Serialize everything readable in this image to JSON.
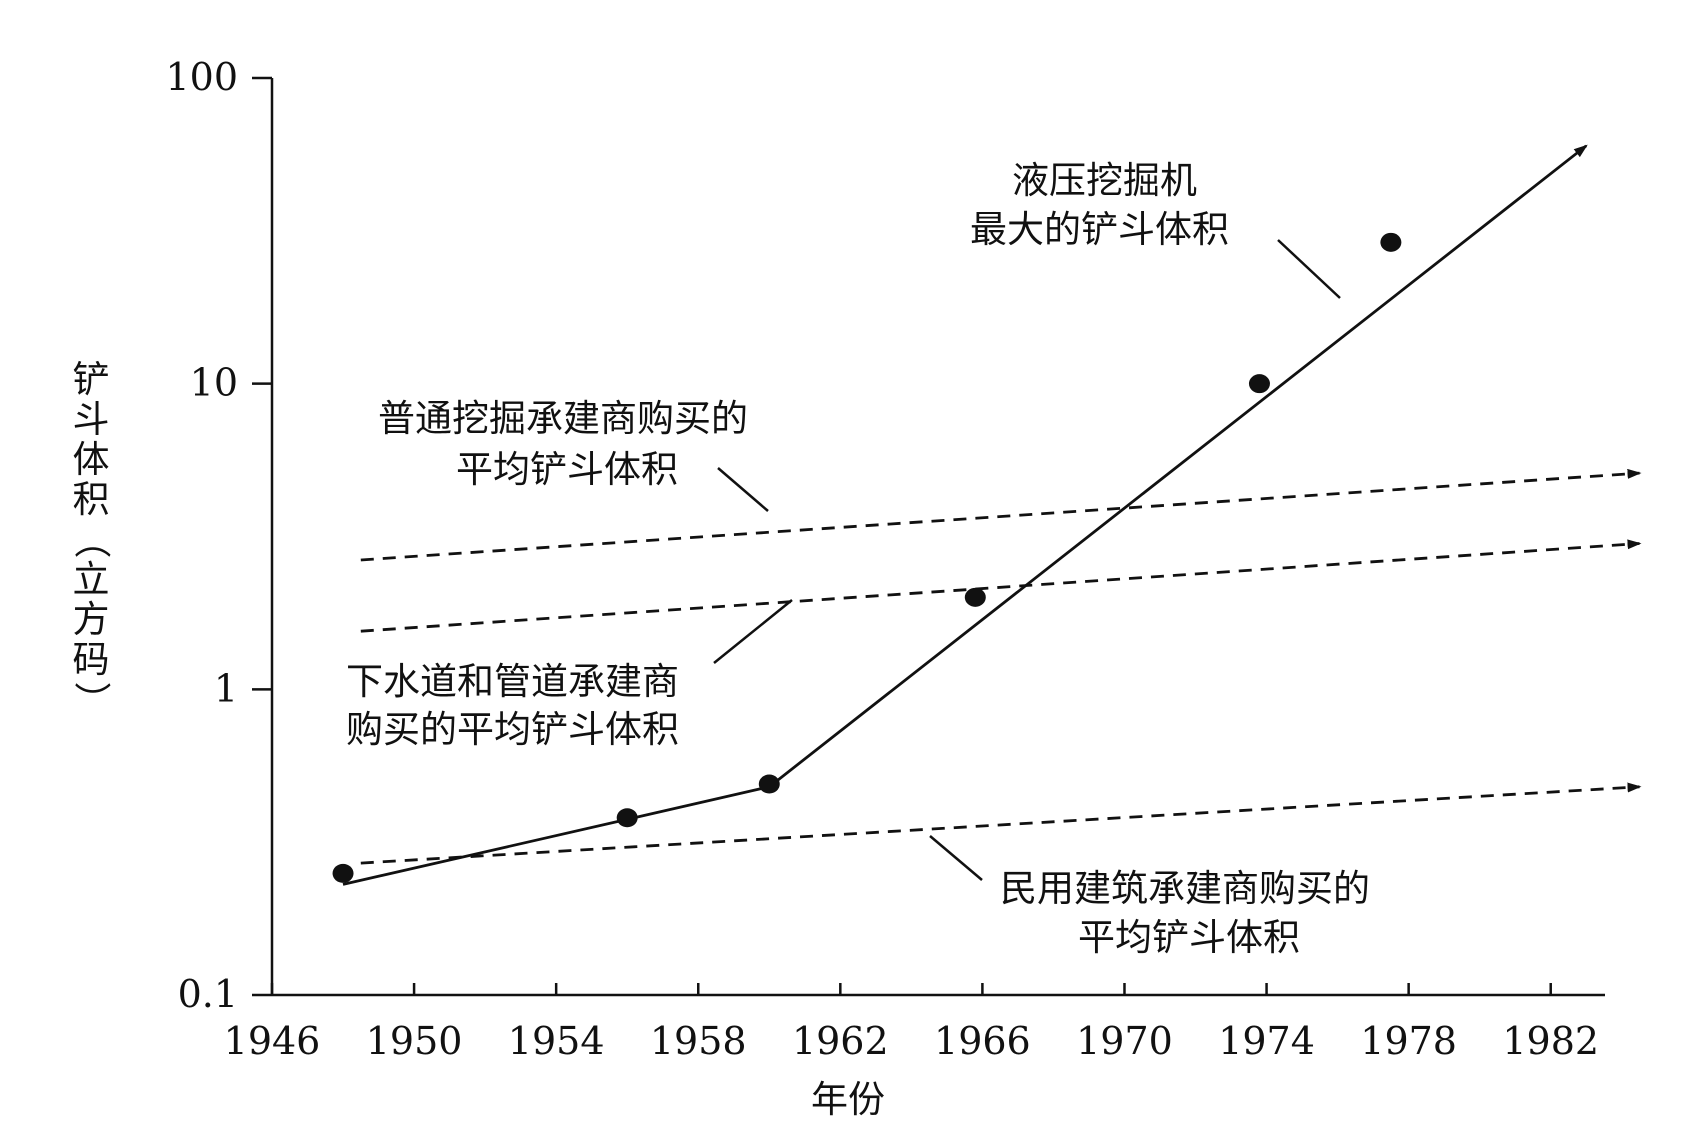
{
  "chart_data": {
    "type": "line",
    "xlabel": "年份",
    "ylabel": "铲斗体积（立方码）",
    "x_ticks": [
      "1946",
      "1950",
      "1954",
      "1958",
      "1962",
      "1966",
      "1970",
      "1974",
      "1978",
      "1982"
    ],
    "y_ticks": [
      "100",
      "10",
      "1",
      "0.1"
    ],
    "yscale": "log",
    "xlim": [
      1946,
      1983.5
    ],
    "ylim": [
      0.1,
      100
    ],
    "grid": false,
    "series": [
      {
        "name": "液压挖掘机最大的铲斗体积",
        "style": "solid",
        "points": [
          {
            "x": 1948.0,
            "y": 0.23
          },
          {
            "x": 1960.0,
            "y": 0.48
          },
          {
            "x": 1983.0,
            "y": 60.0
          }
        ],
        "observed": [
          {
            "x": 1948.0,
            "y": 0.25
          },
          {
            "x": 1956.0,
            "y": 0.38
          },
          {
            "x": 1960.0,
            "y": 0.49
          },
          {
            "x": 1965.8,
            "y": 2.0
          },
          {
            "x": 1973.8,
            "y": 10.0
          },
          {
            "x": 1977.5,
            "y": 29.0
          }
        ]
      },
      {
        "name": "普通挖掘承建商购买的平均铲斗体积",
        "style": "dashed",
        "points": [
          {
            "x": 1948.5,
            "y": 2.65
          },
          {
            "x": 1984.5,
            "y": 5.1
          }
        ]
      },
      {
        "name": "下水道和管道承建商购买的平均铲斗体积",
        "style": "dashed",
        "points": [
          {
            "x": 1948.5,
            "y": 1.55
          },
          {
            "x": 1984.5,
            "y": 3.0
          }
        ]
      },
      {
        "name": "民用建筑承建商购买的平均铲斗体积",
        "style": "dashed",
        "points": [
          {
            "x": 1948.5,
            "y": 0.27
          },
          {
            "x": 1984.5,
            "y": 0.48
          }
        ]
      }
    ],
    "annotations": [
      {
        "lines": [
          "液压挖掘机",
          "最大的铲斗体积"
        ]
      },
      {
        "lines": [
          "普通挖掘承建商购买的",
          "平均铲斗体积"
        ]
      },
      {
        "lines": [
          "下水道和管道承建商",
          "购买的平均铲斗体积"
        ]
      },
      {
        "lines": [
          "民用建筑承建商购买的",
          "平均铲斗体积"
        ]
      }
    ]
  }
}
